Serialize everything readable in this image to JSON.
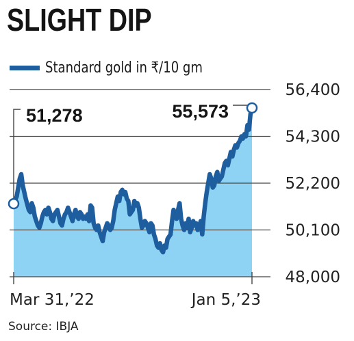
{
  "header": {
    "title": "SLIGHT DIP"
  },
  "footer": {
    "source": "Source: IBJA"
  },
  "colors": {
    "line": "#1f5e9e",
    "area": "#8fd3f4",
    "grid": "#444444",
    "marker_fill": "#ffffff"
  },
  "chart_data": {
    "type": "area",
    "title": "SLIGHT DIP",
    "legend": [
      {
        "label": "Standard gold in ₹/10 gm",
        "color": "#1f5e9e"
      }
    ],
    "legend_position": "top-left",
    "ylim": [
      48000,
      56400
    ],
    "yticks": [
      {
        "value": 56400,
        "label": "56,400"
      },
      {
        "value": 54300,
        "label": "54,300"
      },
      {
        "value": 52200,
        "label": "52,200"
      },
      {
        "value": 50100,
        "label": "50,100"
      },
      {
        "value": 48000,
        "label": "48,000"
      }
    ],
    "x_start_label": "Mar 31,’22",
    "x_end_label": "Jan 5,’23",
    "grid": "horizontal",
    "annotations": [
      {
        "label": "51,278",
        "value": 51278,
        "position": "start"
      },
      {
        "label": "55,573",
        "value": 55573,
        "position": "end"
      }
    ],
    "series": [
      {
        "name": "Standard gold in ₹/10 gm",
        "values": [
          51278,
          51450,
          51600,
          52000,
          52400,
          52600,
          52100,
          51800,
          51500,
          51250,
          51000,
          50900,
          51300,
          51100,
          50700,
          50500,
          50300,
          50200,
          50400,
          50700,
          50900,
          51000,
          50800,
          51100,
          50900,
          50600,
          50500,
          50800,
          50900,
          51000,
          50700,
          50400,
          50300,
          50600,
          50800,
          50900,
          51100,
          50900,
          50700,
          50500,
          50800,
          51000,
          50700,
          50600,
          50900,
          50800,
          50600,
          50700,
          50600,
          50800,
          50500,
          51200,
          51100,
          50400,
          50200,
          50100,
          50300,
          50000,
          49800,
          49600,
          50000,
          50200,
          50400,
          50300,
          50100,
          50200,
          50500,
          51000,
          51300,
          51600,
          51400,
          51800,
          51900,
          51700,
          51800,
          51500,
          51400,
          50800,
          50900,
          51000,
          51400,
          51200,
          51300,
          51100,
          50600,
          50200,
          50300,
          50500,
          50400,
          50200,
          50000,
          50400,
          50300,
          49900,
          49700,
          49400,
          49300,
          49500,
          49200,
          49100,
          49400,
          49300,
          49700,
          49800,
          49900,
          50500,
          51000,
          50800,
          50600,
          51000,
          51300,
          50600,
          50300,
          50100,
          50400,
          50200,
          50600,
          50000,
          50200,
          50500,
          50300,
          50400,
          50100,
          50200,
          50500,
          49900,
          50700,
          51300,
          51800,
          52200,
          52600,
          52400,
          52000,
          52100,
          52500,
          52700,
          52300,
          52400,
          52500,
          52800,
          53100,
          53200,
          53000,
          53300,
          53600,
          53400,
          53700,
          53900,
          53800,
          54000,
          54100,
          54300,
          54200,
          54400,
          54300,
          54800,
          54600,
          55300,
          55573
        ]
      }
    ]
  }
}
